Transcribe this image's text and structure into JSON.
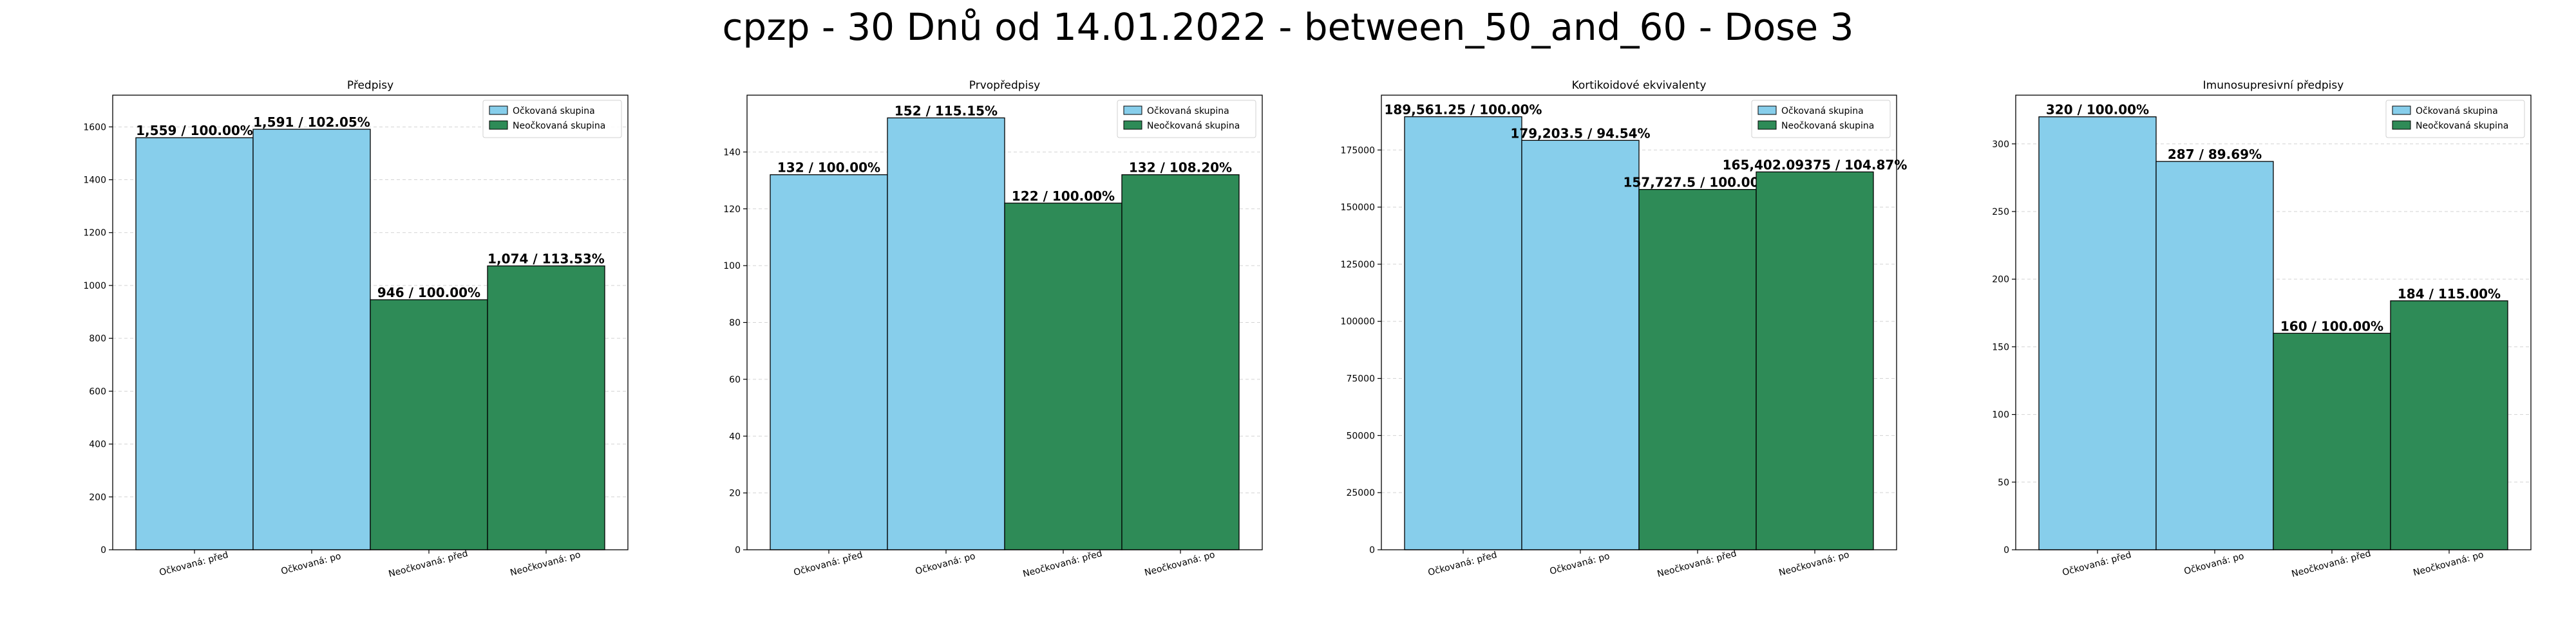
{
  "figure_title": "cpzp - 30 Dnů od 14.01.2022 - between_50_and_60 - Dose 3",
  "chart_data": [
    {
      "type": "bar",
      "title": "Předpisy",
      "categories": [
        "Očkovaná: před",
        "Očkovaná: po",
        "Neočkovaná: před",
        "Neočkovaná: po"
      ],
      "values": [
        1559,
        1591,
        946,
        1074
      ],
      "value_labels": [
        "1,559 / 100.00%",
        "1,591 / 102.05%",
        "946 / 100.00%",
        "1,074 / 113.53%"
      ],
      "bar_groups": [
        "vaccinated",
        "vaccinated",
        "unvaccinated",
        "unvaccinated"
      ],
      "ylim": [
        0,
        1720
      ],
      "yticks": [
        0,
        200,
        400,
        600,
        800,
        1000,
        1200,
        1400,
        1600
      ],
      "legend": [
        {
          "key": "vaccinated",
          "label": "Očkovaná skupina"
        },
        {
          "key": "unvaccinated",
          "label": "Neočkovaná skupina"
        }
      ],
      "legend_position": "top-right",
      "grid": true
    },
    {
      "type": "bar",
      "title": "Prvopředpisy",
      "categories": [
        "Očkovaná: před",
        "Očkovaná: po",
        "Neočkovaná: před",
        "Neočkovaná: po"
      ],
      "values": [
        132,
        152,
        122,
        132
      ],
      "value_labels": [
        "132 / 100.00%",
        "152 / 115.15%",
        "122 / 100.00%",
        "132 / 108.20%"
      ],
      "bar_groups": [
        "vaccinated",
        "vaccinated",
        "unvaccinated",
        "unvaccinated"
      ],
      "ylim": [
        0,
        160
      ],
      "yticks": [
        0,
        20,
        40,
        60,
        80,
        100,
        120,
        140
      ],
      "legend": [
        {
          "key": "vaccinated",
          "label": "Očkovaná skupina"
        },
        {
          "key": "unvaccinated",
          "label": "Neočkovaná skupina"
        }
      ],
      "legend_position": "top-right",
      "grid": true
    },
    {
      "type": "bar",
      "title": "Kortikoidové ekvivalenty",
      "categories": [
        "Očkovaná: před",
        "Očkovaná: po",
        "Neočkovaná: před",
        "Neočkovaná: po"
      ],
      "values": [
        189561.25,
        179203.5,
        157727.5,
        165402.09375
      ],
      "value_labels": [
        "189,561.25 / 100.00%",
        "179,203.5 / 94.54%",
        "157,727.5 / 100.00%",
        "165,402.09375 / 104.87%"
      ],
      "bar_groups": [
        "vaccinated",
        "vaccinated",
        "unvaccinated",
        "unvaccinated"
      ],
      "ylim": [
        0,
        199000
      ],
      "yticks": [
        0,
        25000,
        50000,
        75000,
        100000,
        125000,
        150000,
        175000
      ],
      "legend": [
        {
          "key": "vaccinated",
          "label": "Očkovaná skupina"
        },
        {
          "key": "unvaccinated",
          "label": "Neočkovaná skupina"
        }
      ],
      "legend_position": "top-right",
      "grid": true
    },
    {
      "type": "bar",
      "title": "Imunosupresivní předpisy",
      "categories": [
        "Očkovaná: před",
        "Očkovaná: po",
        "Neočkovaná: před",
        "Neočkovaná: po"
      ],
      "values": [
        320,
        287,
        160,
        184
      ],
      "value_labels": [
        "320 / 100.00%",
        "287 / 89.69%",
        "160 / 100.00%",
        "184 / 115.00%"
      ],
      "bar_groups": [
        "vaccinated",
        "vaccinated",
        "unvaccinated",
        "unvaccinated"
      ],
      "ylim": [
        0,
        336
      ],
      "yticks": [
        0,
        50,
        100,
        150,
        200,
        250,
        300
      ],
      "legend": [
        {
          "key": "vaccinated",
          "label": "Očkovaná skupina"
        },
        {
          "key": "unvaccinated",
          "label": "Neočkovaná skupina"
        }
      ],
      "legend_position": "top-right",
      "grid": true
    }
  ],
  "colors": {
    "vaccinated": "#87ceeb",
    "unvaccinated": "#2e8b57",
    "bar_edge": "#000000"
  }
}
